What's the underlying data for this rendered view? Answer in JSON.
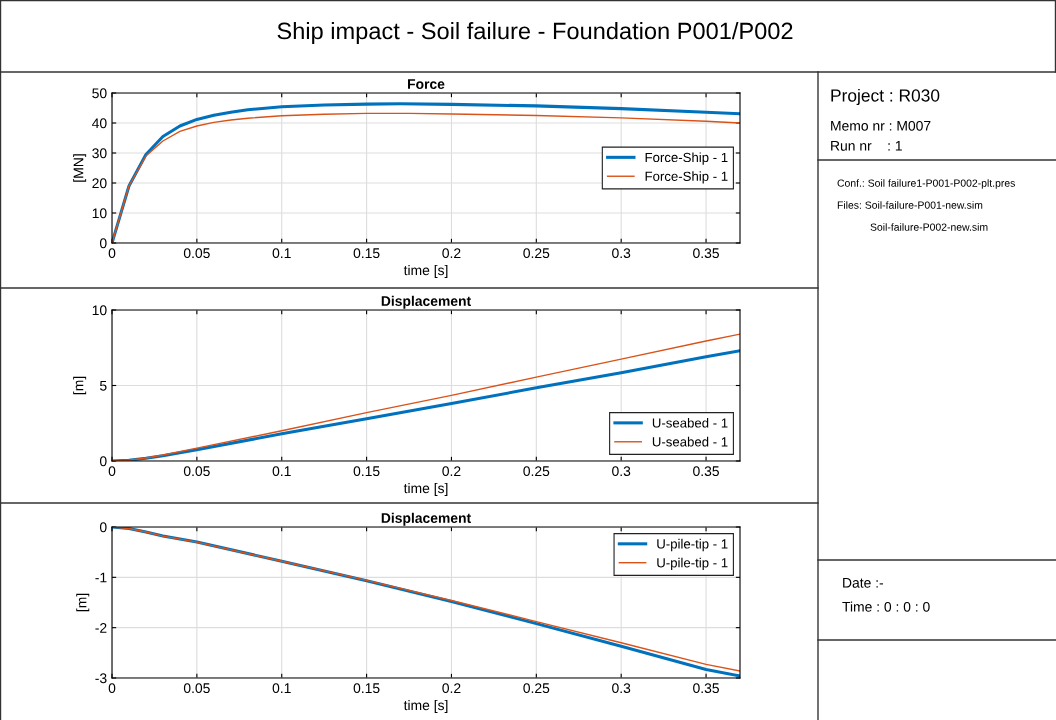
{
  "chart_data": [
    {
      "type": "line",
      "title": "Force",
      "xlabel": "time [s]",
      "ylabel": "[MN]",
      "xlim": [
        0,
        0.37
      ],
      "xticks": [
        0,
        0.05,
        0.1,
        0.15,
        0.2,
        0.25,
        0.3,
        0.35
      ],
      "ylim": [
        0,
        50
      ],
      "yticks": [
        0,
        10,
        20,
        30,
        40,
        50
      ],
      "grid": true,
      "legend": "right",
      "marker": "none",
      "series": [
        {
          "name": "Force-Ship - 1",
          "color": "#0072bd",
          "x": [
            0,
            0.01,
            0.02,
            0.03,
            0.04,
            0.05,
            0.06,
            0.07,
            0.08,
            0.1,
            0.125,
            0.15,
            0.17,
            0.2,
            0.25,
            0.3,
            0.35,
            0.37
          ],
          "values": [
            0,
            19,
            29.5,
            35.5,
            39,
            41.2,
            42.6,
            43.6,
            44.4,
            45.4,
            46,
            46.3,
            46.4,
            46.2,
            45.7,
            44.8,
            43.6,
            43.1
          ]
        },
        {
          "name": "Force-Ship - 1",
          "color": "#d95319",
          "x": [
            0,
            0.01,
            0.02,
            0.03,
            0.04,
            0.05,
            0.06,
            0.07,
            0.08,
            0.1,
            0.125,
            0.15,
            0.175,
            0.2,
            0.25,
            0.3,
            0.35,
            0.37
          ],
          "values": [
            0,
            19,
            29,
            34,
            37.2,
            39,
            40.2,
            41,
            41.6,
            42.4,
            42.9,
            43.2,
            43.2,
            43,
            42.5,
            41.7,
            40.6,
            40
          ]
        }
      ]
    },
    {
      "type": "line",
      "title": "Displacement",
      "xlabel": "time [s]",
      "ylabel": "[m]",
      "xlim": [
        0,
        0.37
      ],
      "xticks": [
        0,
        0.05,
        0.1,
        0.15,
        0.2,
        0.25,
        0.3,
        0.35
      ],
      "ylim": [
        0,
        10
      ],
      "yticks": [
        0,
        5,
        10
      ],
      "grid": true,
      "legend": "bottom right",
      "marker": "none",
      "series": [
        {
          "name": "U-seabed - 1",
          "color": "#0072bd",
          "x": [
            0,
            0.01,
            0.02,
            0.03,
            0.05,
            0.1,
            0.15,
            0.2,
            0.25,
            0.3,
            0.35,
            0.37
          ],
          "values": [
            0,
            0.05,
            0.18,
            0.35,
            0.75,
            1.8,
            2.8,
            3.8,
            4.85,
            5.85,
            6.9,
            7.3
          ]
        },
        {
          "name": "U-seabed - 1",
          "color": "#d95319",
          "x": [
            0,
            0.01,
            0.02,
            0.03,
            0.05,
            0.1,
            0.15,
            0.2,
            0.25,
            0.3,
            0.35,
            0.37
          ],
          "values": [
            0,
            0.05,
            0.2,
            0.4,
            0.85,
            2,
            3.2,
            4.35,
            5.55,
            6.75,
            7.95,
            8.4
          ]
        }
      ]
    },
    {
      "type": "line",
      "title": "Displacement",
      "xlabel": "time [s]",
      "ylabel": "[m]",
      "xlim": [
        0,
        0.37
      ],
      "xticks": [
        0,
        0.05,
        0.1,
        0.15,
        0.2,
        0.25,
        0.3,
        0.35
      ],
      "ylim": [
        -3,
        0
      ],
      "yticks": [
        -3,
        -2,
        -1,
        0
      ],
      "grid": true,
      "legend": "top right",
      "marker": "none",
      "series": [
        {
          "name": "U-pile-tip - 1",
          "color": "#0072bd",
          "x": [
            0,
            0.01,
            0.02,
            0.03,
            0.05,
            0.1,
            0.15,
            0.2,
            0.25,
            0.3,
            0.35,
            0.37
          ],
          "values": [
            0,
            -0.03,
            -0.1,
            -0.18,
            -0.3,
            -0.68,
            -1.07,
            -1.48,
            -1.92,
            -2.37,
            -2.83,
            -2.96
          ]
        },
        {
          "name": "U-pile-tip - 1",
          "color": "#d95319",
          "x": [
            0,
            0.01,
            0.02,
            0.03,
            0.05,
            0.1,
            0.15,
            0.2,
            0.25,
            0.3,
            0.35,
            0.37
          ],
          "values": [
            0,
            -0.03,
            -0.1,
            -0.18,
            -0.3,
            -0.68,
            -1.06,
            -1.46,
            -1.88,
            -2.3,
            -2.73,
            -2.86
          ]
        }
      ]
    },
    {
      "type": "other",
      "title": "Ship impact - Soil failure - Foundation P001/P002",
      "annotations": [
        "Project : R030",
        "Memo nr : M007",
        "Run nr    : 1",
        "Conf.: Soil failure1-P001-P002-plt.pres",
        "Files: Soil-failure-P001-new.sim",
        "Soil-failure-P002-new.sim",
        "Date :-",
        "Time : 0 : 0 : 0"
      ]
    }
  ]
}
